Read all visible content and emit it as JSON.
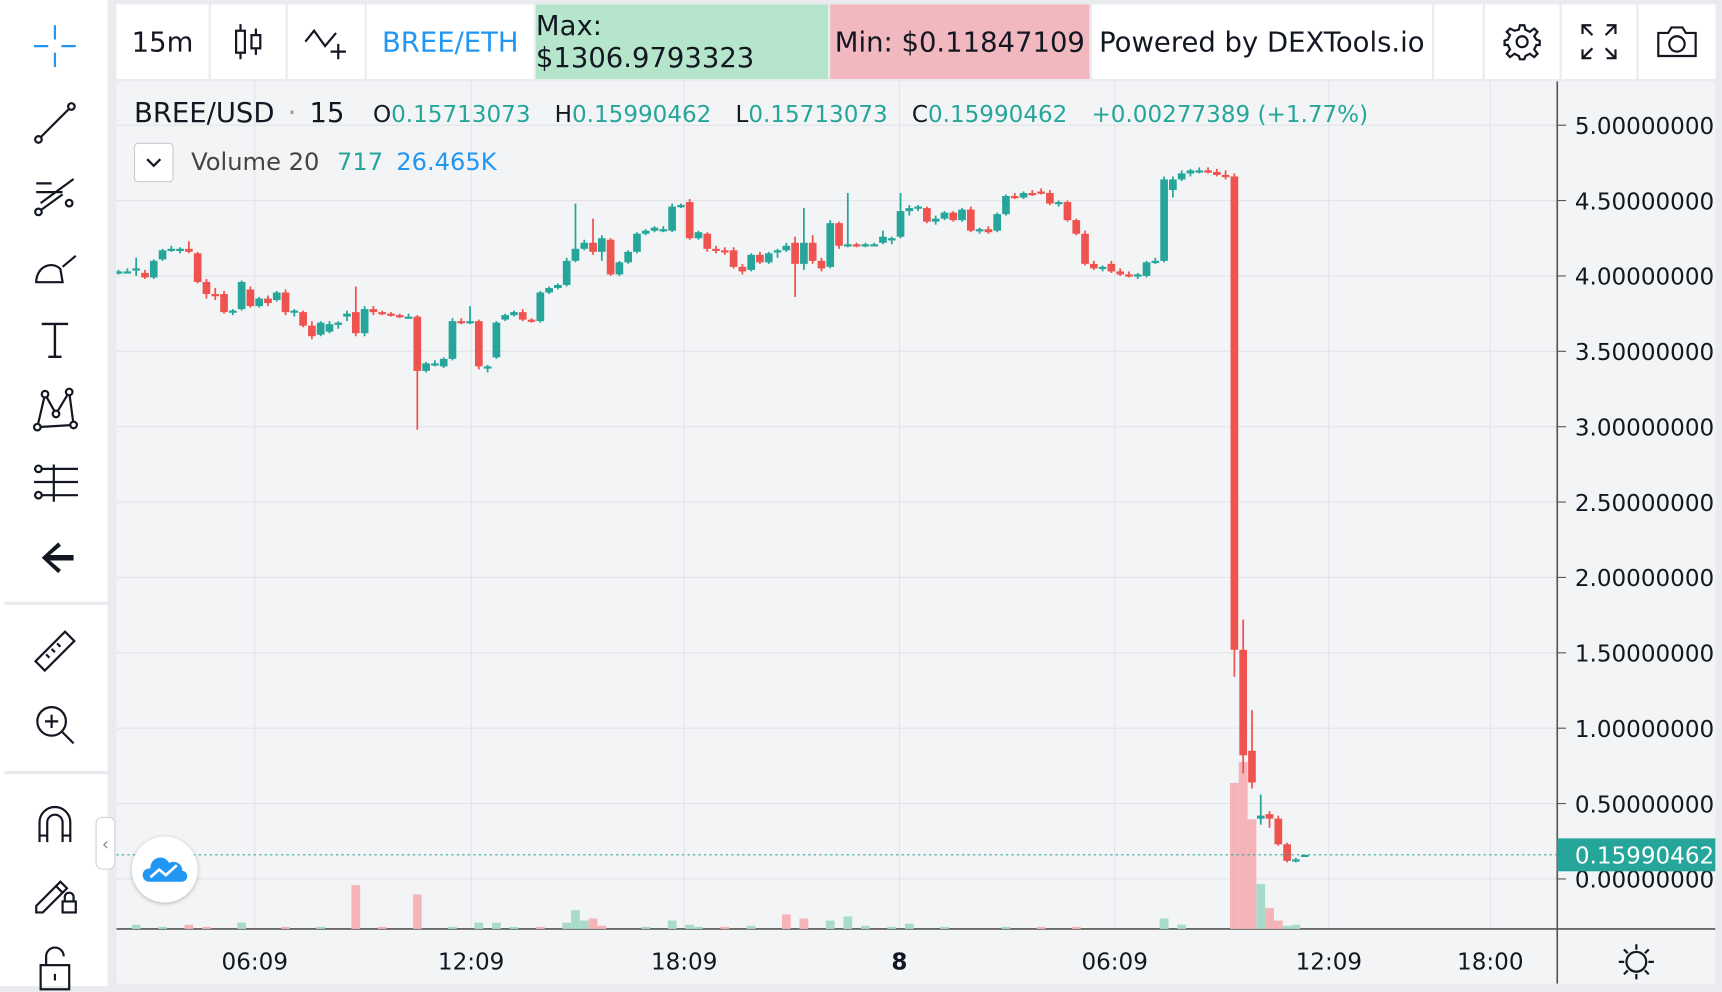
{
  "topbar": {
    "interval": "15m",
    "pair": "BREE/ETH",
    "max": "Max: $1306.9793323",
    "min": "Min: $0.11847109",
    "powered": "Powered by DEXTools.io"
  },
  "legend": {
    "symbol": "BREE/USD",
    "dot": "·",
    "interval": "15",
    "o_label": "O",
    "o_val": "0.15713073",
    "h_label": "H",
    "h_val": "0.15990462",
    "l_label": "L",
    "l_val": "0.15713073",
    "c_label": "C",
    "c_val": "0.15990462",
    "change": "+0.00277389 (+1.77%)",
    "volume_label": "Volume 20",
    "volume_v1": "717",
    "volume_v2": "26.465K"
  },
  "colors": {
    "up": "#26a69a",
    "down": "#ef5350",
    "up_vol": "#a8dcc9",
    "down_vol": "#f4b4b8",
    "accent": "#2196f3",
    "max_bg": "#b5e6cc",
    "min_bg": "#f2b8c0"
  },
  "chart_data": {
    "type": "candlestick",
    "symbol": "BREE/USD",
    "interval": "15",
    "ylim": [
      -0.2,
      5.2
    ],
    "y_ticks": [
      "5.00000000",
      "4.50000000",
      "4.00000000",
      "3.50000000",
      "3.00000000",
      "2.50000000",
      "2.00000000",
      "1.50000000",
      "1.00000000",
      "0.50000000",
      "0.00000000"
    ],
    "x_ticks": [
      "06:09",
      "12:09",
      "18:09",
      "8",
      "06:09",
      "12:09",
      "18:00"
    ],
    "last_price": "0.15990462",
    "candles": [
      {
        "x": 0,
        "o": 4.02,
        "h": 4.04,
        "l": 4.01,
        "c": 4.03
      },
      {
        "x": 4,
        "o": 4.03,
        "h": 4.05,
        "l": 4.02,
        "c": 4.03
      },
      {
        "x": 8,
        "o": 4.04,
        "h": 4.12,
        "l": 4.0,
        "c": 4.05
      },
      {
        "x": 12,
        "o": 4.02,
        "h": 4.04,
        "l": 3.98,
        "c": 3.99
      },
      {
        "x": 16,
        "o": 3.99,
        "h": 4.11,
        "l": 3.98,
        "c": 4.1
      },
      {
        "x": 20,
        "o": 4.11,
        "h": 4.18,
        "l": 4.1,
        "c": 4.17
      },
      {
        "x": 24,
        "o": 4.17,
        "h": 4.2,
        "l": 4.16,
        "c": 4.18
      },
      {
        "x": 28,
        "o": 4.17,
        "h": 4.19,
        "l": 4.15,
        "c": 4.18
      },
      {
        "x": 32,
        "o": 4.18,
        "h": 4.23,
        "l": 4.15,
        "c": 4.16
      },
      {
        "x": 36,
        "o": 4.15,
        "h": 4.16,
        "l": 3.95,
        "c": 3.96
      },
      {
        "x": 40,
        "o": 3.96,
        "h": 3.98,
        "l": 3.85,
        "c": 3.88
      },
      {
        "x": 44,
        "o": 3.88,
        "h": 3.92,
        "l": 3.84,
        "c": 3.87
      },
      {
        "x": 48,
        "o": 3.88,
        "h": 3.9,
        "l": 3.75,
        "c": 3.76
      },
      {
        "x": 52,
        "o": 3.76,
        "h": 3.78,
        "l": 3.74,
        "c": 3.77
      },
      {
        "x": 56,
        "o": 3.78,
        "h": 3.97,
        "l": 3.77,
        "c": 3.96
      },
      {
        "x": 60,
        "o": 3.91,
        "h": 3.93,
        "l": 3.79,
        "c": 3.8
      },
      {
        "x": 64,
        "o": 3.8,
        "h": 3.86,
        "l": 3.79,
        "c": 3.85
      },
      {
        "x": 68,
        "o": 3.85,
        "h": 3.87,
        "l": 3.8,
        "c": 3.82
      },
      {
        "x": 72,
        "o": 3.84,
        "h": 3.9,
        "l": 3.83,
        "c": 3.89
      },
      {
        "x": 76,
        "o": 3.89,
        "h": 3.91,
        "l": 3.74,
        "c": 3.76
      },
      {
        "x": 80,
        "o": 3.76,
        "h": 3.78,
        "l": 3.73,
        "c": 3.77
      },
      {
        "x": 84,
        "o": 3.76,
        "h": 3.77,
        "l": 3.66,
        "c": 3.67
      },
      {
        "x": 88,
        "o": 3.67,
        "h": 3.7,
        "l": 3.58,
        "c": 3.6
      },
      {
        "x": 92,
        "o": 3.61,
        "h": 3.7,
        "l": 3.6,
        "c": 3.69
      },
      {
        "x": 96,
        "o": 3.63,
        "h": 3.7,
        "l": 3.62,
        "c": 3.68
      },
      {
        "x": 100,
        "o": 3.68,
        "h": 3.7,
        "l": 3.65,
        "c": 3.69
      },
      {
        "x": 104,
        "o": 3.73,
        "h": 3.77,
        "l": 3.7,
        "c": 3.75
      },
      {
        "x": 108,
        "o": 3.76,
        "h": 3.93,
        "l": 3.6,
        "c": 3.62
      },
      {
        "x": 112,
        "o": 3.62,
        "h": 3.8,
        "l": 3.6,
        "c": 3.78
      },
      {
        "x": 116,
        "o": 3.78,
        "h": 3.8,
        "l": 3.74,
        "c": 3.76
      },
      {
        "x": 120,
        "o": 3.76,
        "h": 3.77,
        "l": 3.74,
        "c": 3.75
      },
      {
        "x": 124,
        "o": 3.75,
        "h": 3.76,
        "l": 3.73,
        "c": 3.74
      },
      {
        "x": 128,
        "o": 3.74,
        "h": 3.75,
        "l": 3.72,
        "c": 3.73
      },
      {
        "x": 132,
        "o": 3.73,
        "h": 3.75,
        "l": 3.72,
        "c": 3.73
      },
      {
        "x": 136,
        "o": 3.73,
        "h": 3.74,
        "l": 2.98,
        "c": 3.37
      },
      {
        "x": 140,
        "o": 3.37,
        "h": 3.43,
        "l": 3.36,
        "c": 3.42
      },
      {
        "x": 144,
        "o": 3.42,
        "h": 3.44,
        "l": 3.4,
        "c": 3.42
      },
      {
        "x": 148,
        "o": 3.4,
        "h": 3.46,
        "l": 3.39,
        "c": 3.45
      },
      {
        "x": 152,
        "o": 3.45,
        "h": 3.72,
        "l": 3.44,
        "c": 3.7
      },
      {
        "x": 156,
        "o": 3.7,
        "h": 3.72,
        "l": 3.68,
        "c": 3.69
      },
      {
        "x": 160,
        "o": 3.69,
        "h": 3.8,
        "l": 3.68,
        "c": 3.7
      },
      {
        "x": 164,
        "o": 3.7,
        "h": 3.71,
        "l": 3.38,
        "c": 3.4
      },
      {
        "x": 168,
        "o": 3.39,
        "h": 3.41,
        "l": 3.36,
        "c": 3.4
      },
      {
        "x": 172,
        "o": 3.46,
        "h": 3.7,
        "l": 3.45,
        "c": 3.69
      },
      {
        "x": 176,
        "o": 3.71,
        "h": 3.75,
        "l": 3.7,
        "c": 3.74
      },
      {
        "x": 180,
        "o": 3.74,
        "h": 3.77,
        "l": 3.73,
        "c": 3.76
      },
      {
        "x": 184,
        "o": 3.76,
        "h": 3.78,
        "l": 3.7,
        "c": 3.71
      },
      {
        "x": 188,
        "o": 3.71,
        "h": 3.72,
        "l": 3.69,
        "c": 3.7
      },
      {
        "x": 192,
        "o": 3.7,
        "h": 3.9,
        "l": 3.69,
        "c": 3.89
      },
      {
        "x": 196,
        "o": 3.89,
        "h": 3.93,
        "l": 3.88,
        "c": 3.92
      },
      {
        "x": 200,
        "o": 3.92,
        "h": 3.95,
        "l": 3.91,
        "c": 3.94
      },
      {
        "x": 204,
        "o": 3.94,
        "h": 4.12,
        "l": 3.93,
        "c": 4.1
      },
      {
        "x": 208,
        "o": 4.1,
        "h": 4.48,
        "l": 4.09,
        "c": 4.18
      },
      {
        "x": 212,
        "o": 4.18,
        "h": 4.24,
        "l": 4.17,
        "c": 4.22
      },
      {
        "x": 216,
        "o": 4.22,
        "h": 4.38,
        "l": 4.14,
        "c": 4.16
      },
      {
        "x": 220,
        "o": 4.16,
        "h": 4.27,
        "l": 4.1,
        "c": 4.25
      },
      {
        "x": 224,
        "o": 4.24,
        "h": 4.25,
        "l": 4.0,
        "c": 4.01
      },
      {
        "x": 228,
        "o": 4.01,
        "h": 4.1,
        "l": 4.0,
        "c": 4.09
      },
      {
        "x": 232,
        "o": 4.09,
        "h": 4.17,
        "l": 4.08,
        "c": 4.16
      },
      {
        "x": 236,
        "o": 4.16,
        "h": 4.29,
        "l": 4.15,
        "c": 4.28
      },
      {
        "x": 240,
        "o": 4.28,
        "h": 4.31,
        "l": 4.27,
        "c": 4.3
      },
      {
        "x": 244,
        "o": 4.3,
        "h": 4.33,
        "l": 4.29,
        "c": 4.32
      },
      {
        "x": 248,
        "o": 4.31,
        "h": 4.33,
        "l": 4.29,
        "c": 4.31
      },
      {
        "x": 252,
        "o": 4.3,
        "h": 4.48,
        "l": 4.29,
        "c": 4.46
      },
      {
        "x": 256,
        "o": 4.46,
        "h": 4.48,
        "l": 4.45,
        "c": 4.47
      },
      {
        "x": 260,
        "o": 4.49,
        "h": 4.51,
        "l": 4.24,
        "c": 4.25
      },
      {
        "x": 264,
        "o": 4.25,
        "h": 4.3,
        "l": 4.24,
        "c": 4.29
      },
      {
        "x": 268,
        "o": 4.28,
        "h": 4.29,
        "l": 4.16,
        "c": 4.18
      },
      {
        "x": 272,
        "o": 4.18,
        "h": 4.2,
        "l": 4.15,
        "c": 4.17
      },
      {
        "x": 276,
        "o": 4.17,
        "h": 4.19,
        "l": 4.14,
        "c": 4.16
      },
      {
        "x": 280,
        "o": 4.17,
        "h": 4.19,
        "l": 4.05,
        "c": 4.06
      },
      {
        "x": 284,
        "o": 4.06,
        "h": 4.08,
        "l": 4.01,
        "c": 4.03
      },
      {
        "x": 288,
        "o": 4.04,
        "h": 4.15,
        "l": 4.03,
        "c": 4.14
      },
      {
        "x": 292,
        "o": 4.14,
        "h": 4.16,
        "l": 4.08,
        "c": 4.09
      },
      {
        "x": 296,
        "o": 4.09,
        "h": 4.16,
        "l": 4.08,
        "c": 4.15
      },
      {
        "x": 300,
        "o": 4.16,
        "h": 4.18,
        "l": 4.12,
        "c": 4.17
      },
      {
        "x": 304,
        "o": 4.17,
        "h": 4.22,
        "l": 4.16,
        "c": 4.2
      },
      {
        "x": 308,
        "o": 4.22,
        "h": 4.26,
        "l": 3.86,
        "c": 4.08
      },
      {
        "x": 312,
        "o": 4.08,
        "h": 4.45,
        "l": 4.04,
        "c": 4.22
      },
      {
        "x": 316,
        "o": 4.22,
        "h": 4.27,
        "l": 4.08,
        "c": 4.1
      },
      {
        "x": 320,
        "o": 4.1,
        "h": 4.12,
        "l": 4.03,
        "c": 4.05
      },
      {
        "x": 324,
        "o": 4.06,
        "h": 4.37,
        "l": 4.05,
        "c": 4.35
      },
      {
        "x": 328,
        "o": 4.35,
        "h": 4.36,
        "l": 4.18,
        "c": 4.2
      },
      {
        "x": 332,
        "o": 4.2,
        "h": 4.55,
        "l": 4.19,
        "c": 4.21
      },
      {
        "x": 336,
        "o": 4.21,
        "h": 4.22,
        "l": 4.19,
        "c": 4.2
      },
      {
        "x": 340,
        "o": 4.2,
        "h": 4.22,
        "l": 4.19,
        "c": 4.21
      },
      {
        "x": 344,
        "o": 4.21,
        "h": 4.22,
        "l": 4.2,
        "c": 4.21
      },
      {
        "x": 348,
        "o": 4.22,
        "h": 4.3,
        "l": 4.21,
        "c": 4.26
      },
      {
        "x": 352,
        "o": 4.24,
        "h": 4.26,
        "l": 4.21,
        "c": 4.25
      },
      {
        "x": 356,
        "o": 4.26,
        "h": 4.55,
        "l": 4.25,
        "c": 4.43
      },
      {
        "x": 360,
        "o": 4.43,
        "h": 4.47,
        "l": 4.4,
        "c": 4.45
      },
      {
        "x": 364,
        "o": 4.45,
        "h": 4.47,
        "l": 4.43,
        "c": 4.46
      },
      {
        "x": 368,
        "o": 4.45,
        "h": 4.46,
        "l": 4.35,
        "c": 4.36
      },
      {
        "x": 372,
        "o": 4.36,
        "h": 4.4,
        "l": 4.34,
        "c": 4.38
      },
      {
        "x": 376,
        "o": 4.38,
        "h": 4.43,
        "l": 4.37,
        "c": 4.42
      },
      {
        "x": 380,
        "o": 4.42,
        "h": 4.43,
        "l": 4.36,
        "c": 4.37
      },
      {
        "x": 384,
        "o": 4.37,
        "h": 4.45,
        "l": 4.36,
        "c": 4.44
      },
      {
        "x": 388,
        "o": 4.44,
        "h": 4.46,
        "l": 4.29,
        "c": 4.3
      },
      {
        "x": 392,
        "o": 4.3,
        "h": 4.32,
        "l": 4.28,
        "c": 4.31
      },
      {
        "x": 396,
        "o": 4.31,
        "h": 4.33,
        "l": 4.28,
        "c": 4.29
      },
      {
        "x": 400,
        "o": 4.3,
        "h": 4.42,
        "l": 4.29,
        "c": 4.41
      },
      {
        "x": 404,
        "o": 4.41,
        "h": 4.54,
        "l": 4.4,
        "c": 4.53
      },
      {
        "x": 408,
        "o": 4.53,
        "h": 4.55,
        "l": 4.51,
        "c": 4.52
      },
      {
        "x": 412,
        "o": 4.52,
        "h": 4.56,
        "l": 4.51,
        "c": 4.55
      },
      {
        "x": 416,
        "o": 4.55,
        "h": 4.57,
        "l": 4.53,
        "c": 4.54
      },
      {
        "x": 420,
        "o": 4.56,
        "h": 4.58,
        "l": 4.54,
        "c": 4.55
      },
      {
        "x": 424,
        "o": 4.55,
        "h": 4.57,
        "l": 4.47,
        "c": 4.48
      },
      {
        "x": 428,
        "o": 4.48,
        "h": 4.5,
        "l": 4.46,
        "c": 4.49
      },
      {
        "x": 432,
        "o": 4.49,
        "h": 4.5,
        "l": 4.36,
        "c": 4.37
      },
      {
        "x": 436,
        "o": 4.37,
        "h": 4.38,
        "l": 4.27,
        "c": 4.28
      },
      {
        "x": 440,
        "o": 4.28,
        "h": 4.3,
        "l": 4.07,
        "c": 4.08
      },
      {
        "x": 444,
        "o": 4.08,
        "h": 4.1,
        "l": 4.04,
        "c": 4.05
      },
      {
        "x": 448,
        "o": 4.05,
        "h": 4.07,
        "l": 4.03,
        "c": 4.06
      },
      {
        "x": 452,
        "o": 4.08,
        "h": 4.1,
        "l": 4.02,
        "c": 4.03
      },
      {
        "x": 456,
        "o": 4.03,
        "h": 4.05,
        "l": 4.0,
        "c": 4.01
      },
      {
        "x": 460,
        "o": 4.01,
        "h": 4.03,
        "l": 3.99,
        "c": 4.0
      },
      {
        "x": 464,
        "o": 4.0,
        "h": 4.02,
        "l": 3.98,
        "c": 4.01
      },
      {
        "x": 468,
        "o": 4.0,
        "h": 4.1,
        "l": 3.99,
        "c": 4.09
      },
      {
        "x": 472,
        "o": 4.09,
        "h": 4.12,
        "l": 4.08,
        "c": 4.1
      },
      {
        "x": 476,
        "o": 4.1,
        "h": 4.66,
        "l": 4.09,
        "c": 4.64
      },
      {
        "x": 480,
        "o": 4.57,
        "h": 4.66,
        "l": 4.52,
        "c": 4.64
      },
      {
        "x": 484,
        "o": 4.64,
        "h": 4.7,
        "l": 4.63,
        "c": 4.68
      },
      {
        "x": 488,
        "o": 4.68,
        "h": 4.71,
        "l": 4.66,
        "c": 4.7
      },
      {
        "x": 492,
        "o": 4.69,
        "h": 4.72,
        "l": 4.68,
        "c": 4.7
      },
      {
        "x": 496,
        "o": 4.7,
        "h": 4.72,
        "l": 4.68,
        "c": 4.69
      },
      {
        "x": 500,
        "o": 4.69,
        "h": 4.71,
        "l": 4.66,
        "c": 4.67
      },
      {
        "x": 504,
        "o": 4.67,
        "h": 4.7,
        "l": 4.64,
        "c": 4.66
      },
      {
        "x": 508,
        "o": 4.66,
        "h": 4.68,
        "l": 1.34,
        "c": 1.52
      },
      {
        "x": 512,
        "o": 1.52,
        "h": 1.72,
        "l": 0.7,
        "c": 0.82
      },
      {
        "x": 516,
        "o": 0.85,
        "h": 1.12,
        "l": 0.6,
        "c": 0.64
      },
      {
        "x": 520,
        "o": 0.4,
        "h": 0.56,
        "l": 0.36,
        "c": 0.42
      },
      {
        "x": 524,
        "o": 0.43,
        "h": 0.45,
        "l": 0.34,
        "c": 0.4
      },
      {
        "x": 528,
        "o": 0.4,
        "h": 0.42,
        "l": 0.22,
        "c": 0.23
      },
      {
        "x": 532,
        "o": 0.23,
        "h": 0.24,
        "l": 0.11,
        "c": 0.12
      },
      {
        "x": 536,
        "o": 0.12,
        "h": 0.14,
        "l": 0.11,
        "c": 0.13
      },
      {
        "x": 540,
        "o": 0.157,
        "h": 0.16,
        "l": 0.157,
        "c": 0.16
      }
    ],
    "volume": [
      {
        "x": 8,
        "v": 40,
        "up": true
      },
      {
        "x": 20,
        "v": 20,
        "up": true
      },
      {
        "x": 32,
        "v": 40,
        "up": false
      },
      {
        "x": 40,
        "v": 20,
        "up": false
      },
      {
        "x": 56,
        "v": 60,
        "up": true
      },
      {
        "x": 76,
        "v": 20,
        "up": false
      },
      {
        "x": 92,
        "v": 20,
        "up": true
      },
      {
        "x": 108,
        "v": 420,
        "up": false
      },
      {
        "x": 120,
        "v": 20,
        "up": false
      },
      {
        "x": 136,
        "v": 330,
        "up": false
      },
      {
        "x": 152,
        "v": 20,
        "up": true
      },
      {
        "x": 164,
        "v": 60,
        "up": true
      },
      {
        "x": 172,
        "v": 60,
        "up": true
      },
      {
        "x": 180,
        "v": 20,
        "up": true
      },
      {
        "x": 192,
        "v": 20,
        "up": false
      },
      {
        "x": 204,
        "v": 60,
        "up": true
      },
      {
        "x": 208,
        "v": 180,
        "up": true
      },
      {
        "x": 212,
        "v": 80,
        "up": true
      },
      {
        "x": 216,
        "v": 100,
        "up": false
      },
      {
        "x": 220,
        "v": 30,
        "up": false
      },
      {
        "x": 240,
        "v": 20,
        "up": true
      },
      {
        "x": 252,
        "v": 80,
        "up": true
      },
      {
        "x": 260,
        "v": 40,
        "up": true
      },
      {
        "x": 264,
        "v": 20,
        "up": true
      },
      {
        "x": 276,
        "v": 20,
        "up": false
      },
      {
        "x": 288,
        "v": 30,
        "up": true
      },
      {
        "x": 304,
        "v": 140,
        "up": false
      },
      {
        "x": 312,
        "v": 100,
        "up": false
      },
      {
        "x": 324,
        "v": 80,
        "up": true
      },
      {
        "x": 332,
        "v": 120,
        "up": true
      },
      {
        "x": 340,
        "v": 30,
        "up": true
      },
      {
        "x": 352,
        "v": 20,
        "up": true
      },
      {
        "x": 360,
        "v": 50,
        "up": true
      },
      {
        "x": 376,
        "v": 20,
        "up": true
      },
      {
        "x": 404,
        "v": 20,
        "up": true
      },
      {
        "x": 420,
        "v": 20,
        "up": false
      },
      {
        "x": 436,
        "v": 20,
        "up": false
      },
      {
        "x": 476,
        "v": 100,
        "up": true
      },
      {
        "x": 484,
        "v": 40,
        "up": true
      },
      {
        "x": 508,
        "v": 1400,
        "up": false
      },
      {
        "x": 512,
        "v": 1600,
        "up": false
      },
      {
        "x": 516,
        "v": 1050,
        "up": false
      },
      {
        "x": 520,
        "v": 430,
        "up": true
      },
      {
        "x": 524,
        "v": 200,
        "up": false
      },
      {
        "x": 528,
        "v": 80,
        "up": false
      },
      {
        "x": 532,
        "v": 30,
        "up": true
      },
      {
        "x": 536,
        "v": 40,
        "up": true
      }
    ]
  }
}
